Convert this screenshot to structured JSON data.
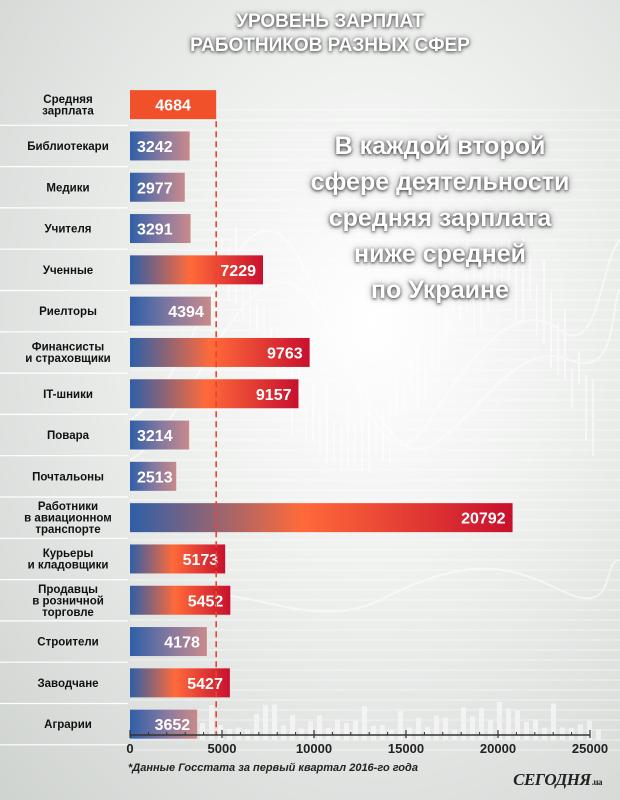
{
  "header": {
    "title_line1": "УРОВЕНЬ ЗАРПЛАТ",
    "title_line2": "РАБОТНИКОВ РАЗНЫХ СФЕР"
  },
  "headline": {
    "lines": [
      "В каждой второй",
      "сфере деятельности",
      "средняя зарплата",
      "ниже средней",
      "по Украине"
    ]
  },
  "footnote": "*Данные Госстата за первый квартал 2016-го года",
  "logo": {
    "text": "СЕГОДНЯ",
    "suffix": ".ua"
  },
  "colors": {
    "average_bar": "#f0502a",
    "above_average_end": "#c8102e",
    "below_average_end": "#c98a8a",
    "bar_start": "#2e5fa8",
    "average_line": "#e8452a"
  },
  "chart_data": {
    "type": "bar",
    "orientation": "horizontal",
    "categories": [
      [
        "Средняя",
        "зарплата"
      ],
      [
        "Библиотекари"
      ],
      [
        "Медики"
      ],
      [
        "Учителя"
      ],
      [
        "Ученные"
      ],
      [
        "Риелторы"
      ],
      [
        "Финансисты",
        "и страховщики"
      ],
      [
        "IT-шники"
      ],
      [
        "Повара"
      ],
      [
        "Почтальоны"
      ],
      [
        "Работники",
        "в авиационном",
        "транспорте"
      ],
      [
        "Курьеры",
        "и кладовщики"
      ],
      [
        "Продавцы",
        "в розничной",
        "торговле"
      ],
      [
        "Строители"
      ],
      [
        "Заводчане"
      ],
      [
        "Аграрии"
      ]
    ],
    "values": [
      4684,
      3242,
      2977,
      3291,
      7229,
      4394,
      9763,
      9157,
      3214,
      2513,
      20792,
      5173,
      5452,
      4178,
      5427,
      3652
    ],
    "average_value": 4684,
    "xlim": [
      0,
      25000
    ],
    "xticks": [
      0,
      5000,
      10000,
      15000,
      20000,
      25000
    ],
    "xlabel": "",
    "ylabel": ""
  }
}
